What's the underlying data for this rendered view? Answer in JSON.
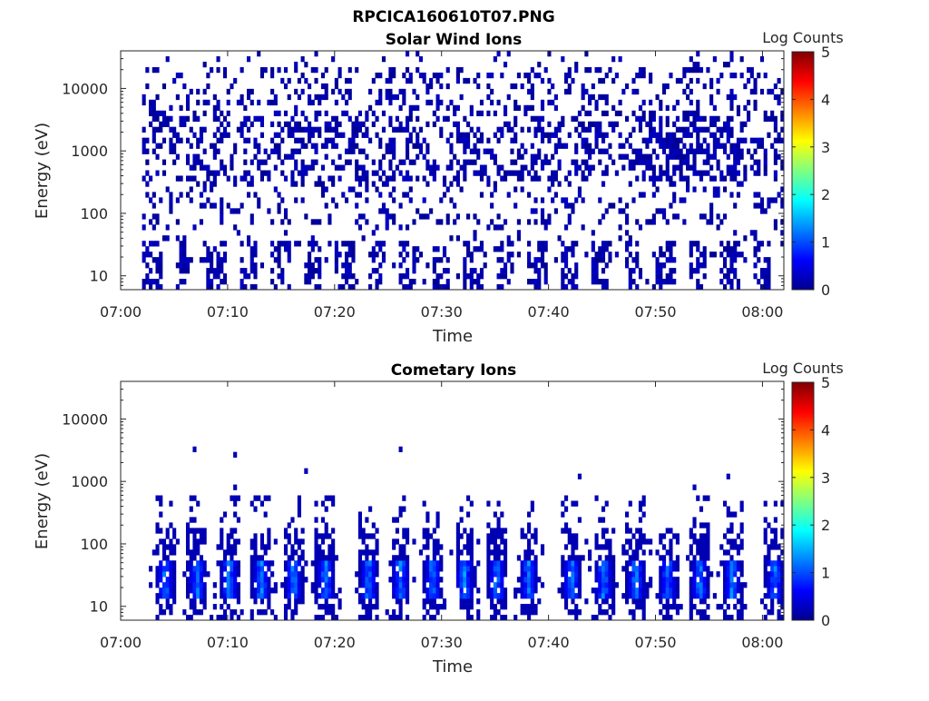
{
  "figure_title": "RPCICA160610T07.PNG",
  "colorscale": [
    "#00008f",
    "#0000ff",
    "#0080ff",
    "#00ffff",
    "#80ff80",
    "#ffff00",
    "#ff8000",
    "#ff0000",
    "#800000"
  ],
  "chart_data": [
    {
      "type": "heatmap",
      "title": "Solar Wind Ions",
      "xlabel": "Time",
      "ylabel": "Energy (eV)",
      "yscale": "log",
      "xlim": [
        "07:00",
        "08:02"
      ],
      "ylim": [
        6,
        40000
      ],
      "x_ticks": [
        "07:00",
        "07:10",
        "07:20",
        "07:30",
        "07:40",
        "07:50",
        "08:00"
      ],
      "y_ticks": [
        {
          "value": 10,
          "label": "10"
        },
        {
          "value": 100,
          "label": "100"
        },
        {
          "value": 1000,
          "label": "1000"
        },
        {
          "value": 10000,
          "label": "10000"
        }
      ],
      "colorbar": {
        "label": "Log Counts",
        "range": [
          0,
          5
        ],
        "ticks": [
          "0",
          "1",
          "2",
          "3",
          "4",
          "5"
        ]
      },
      "data_start": "07:02",
      "data_end": "08:02",
      "energy_range": [
        6,
        30000
      ],
      "periodic_low_energy_bursts_minutes": 3.0,
      "burst_energy_range": [
        6,
        35
      ],
      "dominant_log_counts": 0.3,
      "density_enhancement_minutes": [
        "07:48",
        "07:58"
      ],
      "density_enhancement_energy_range": [
        300,
        3000
      ]
    },
    {
      "type": "heatmap",
      "title": "Cometary Ions",
      "xlabel": "Time",
      "ylabel": "Energy (eV)",
      "yscale": "log",
      "xlim": [
        "07:00",
        "08:02"
      ],
      "ylim": [
        6,
        40000
      ],
      "x_ticks": [
        "07:00",
        "07:10",
        "07:20",
        "07:30",
        "07:40",
        "07:50",
        "08:00"
      ],
      "y_ticks": [
        {
          "value": 10,
          "label": "10"
        },
        {
          "value": 100,
          "label": "100"
        },
        {
          "value": 1000,
          "label": "1000"
        },
        {
          "value": 10000,
          "label": "10000"
        }
      ],
      "colorbar": {
        "label": "Log Counts",
        "range": [
          0,
          5
        ],
        "ticks": [
          "0",
          "1",
          "2",
          "3",
          "4",
          "5"
        ]
      },
      "burst_centers": [
        "07:04",
        "07:07",
        "07:10",
        "07:13",
        "07:16",
        "07:19",
        "07:23",
        "07:26",
        "07:29",
        "07:32",
        "07:35",
        "07:38",
        "07:42",
        "07:45",
        "07:48",
        "07:51",
        "07:54",
        "07:57",
        "08:01"
      ],
      "burst_energy_range": [
        6,
        500
      ],
      "burst_peak_log_counts": 1.5,
      "burst_peak_energy": 15
    }
  ]
}
